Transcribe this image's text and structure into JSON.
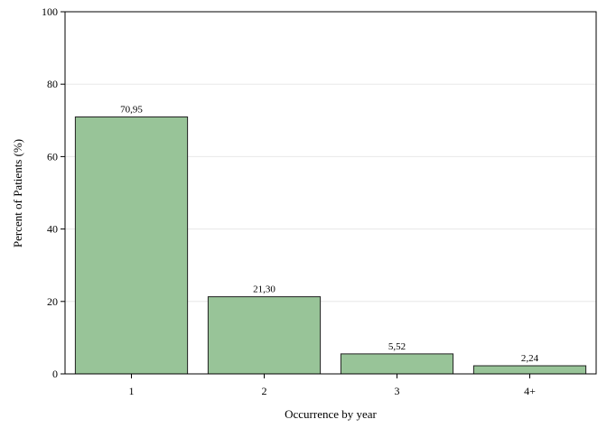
{
  "chart_data": {
    "type": "bar",
    "title": "",
    "xlabel": "Occurrence by year",
    "ylabel": "Percent of Patients (%)",
    "categories": [
      "1",
      "2",
      "3",
      "4+"
    ],
    "values": [
      70.95,
      21.3,
      5.52,
      2.24
    ],
    "value_labels": [
      "70,95",
      "21,30",
      "5,52",
      "2,24"
    ],
    "ylim": [
      0,
      100
    ],
    "yticks": [
      0,
      20,
      40,
      60,
      80,
      100
    ],
    "ytick_labels": [
      "0",
      "20",
      "40",
      "60",
      "80",
      "100"
    ],
    "grid": "horizontal",
    "legend": "none",
    "bar_color": "#98c498",
    "bar_edge_color": "#222222",
    "grid_color": "#e8e8e8"
  }
}
